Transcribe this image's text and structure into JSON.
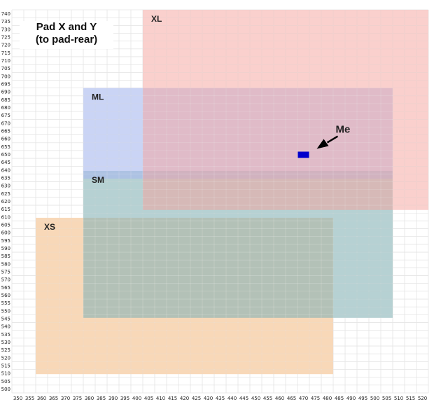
{
  "chart_data": {
    "type": "region-map",
    "title": "Pad X and Y",
    "subtitle": "(to pad-rear)",
    "xlim": [
      347.5,
      522.5
    ],
    "ylim": [
      497.5,
      742.5
    ],
    "x_ticks_step": 5,
    "y_ticks_step": 5,
    "grid": true,
    "regions": [
      {
        "name": "XS",
        "x": [
          360,
          480
        ],
        "y": [
          512,
          607
        ],
        "color": "#f5c89a",
        "opacity": 0.7
      },
      {
        "name": "SM",
        "x": [
          380,
          505
        ],
        "y": [
          548,
          637
        ],
        "color": "#86b3b5",
        "opacity": 0.6
      },
      {
        "name": "ML",
        "x": [
          380,
          505
        ],
        "y": [
          637,
          690
        ],
        "color": "#a7b7ef",
        "opacity": 0.6
      },
      {
        "name": "XL",
        "x": [
          405,
          520
        ],
        "y": [
          617,
          740
        ],
        "color": "#f6a19b",
        "opacity": 0.5
      }
    ],
    "marker": {
      "label": "Me",
      "x": 470,
      "y": 650,
      "color": "#0000cc"
    }
  }
}
